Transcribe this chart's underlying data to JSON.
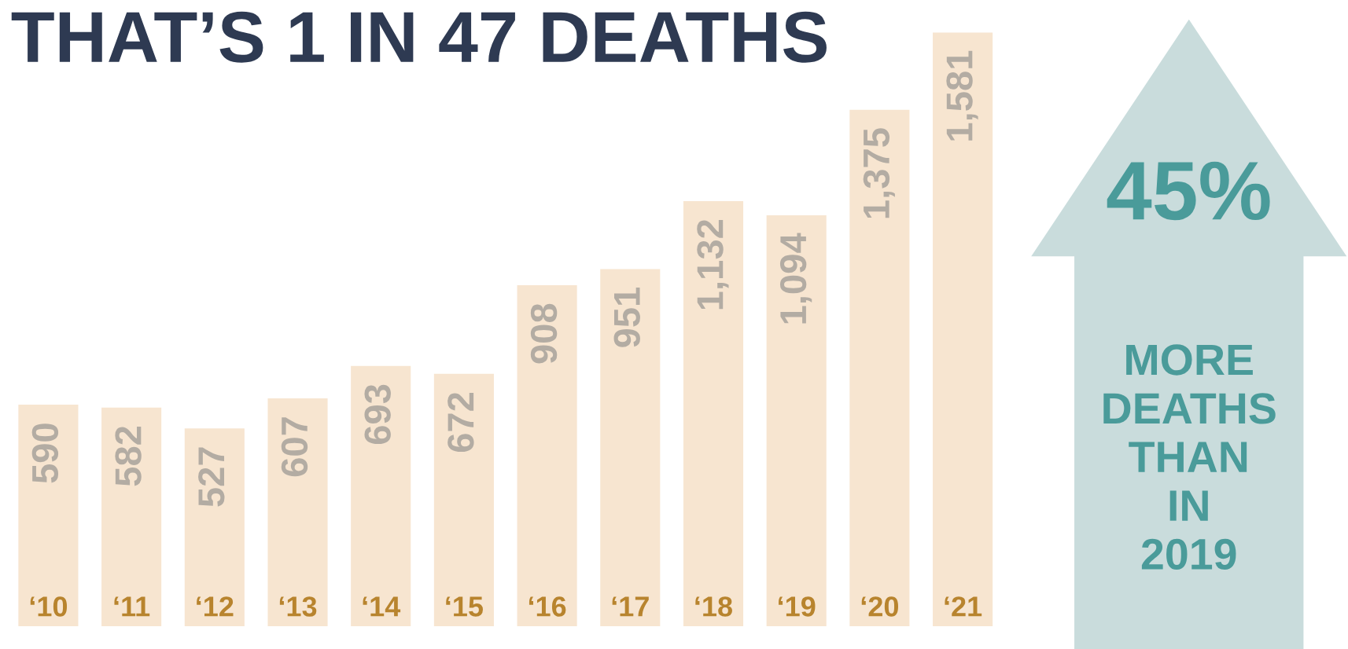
{
  "chart_data": {
    "type": "bar",
    "title": "THAT’S 1 IN 47 DEATHS",
    "categories": [
      "‘10",
      "‘11",
      "‘12",
      "‘13",
      "‘14",
      "‘15",
      "‘16",
      "‘17",
      "‘18",
      "‘19",
      "‘20",
      "‘21"
    ],
    "values": [
      590,
      582,
      527,
      607,
      693,
      672,
      908,
      951,
      1132,
      1094,
      1375,
      1581
    ],
    "color": "#f7e5d0",
    "value_labels": [
      "590",
      "582",
      "527",
      "607",
      "693",
      "672",
      "908",
      "951",
      "1,132",
      "1,094",
      "1,375",
      "1,581"
    ],
    "grid": false,
    "annotations": [
      "45%",
      "MORE DEATHS THAN IN 2019"
    ]
  }
}
